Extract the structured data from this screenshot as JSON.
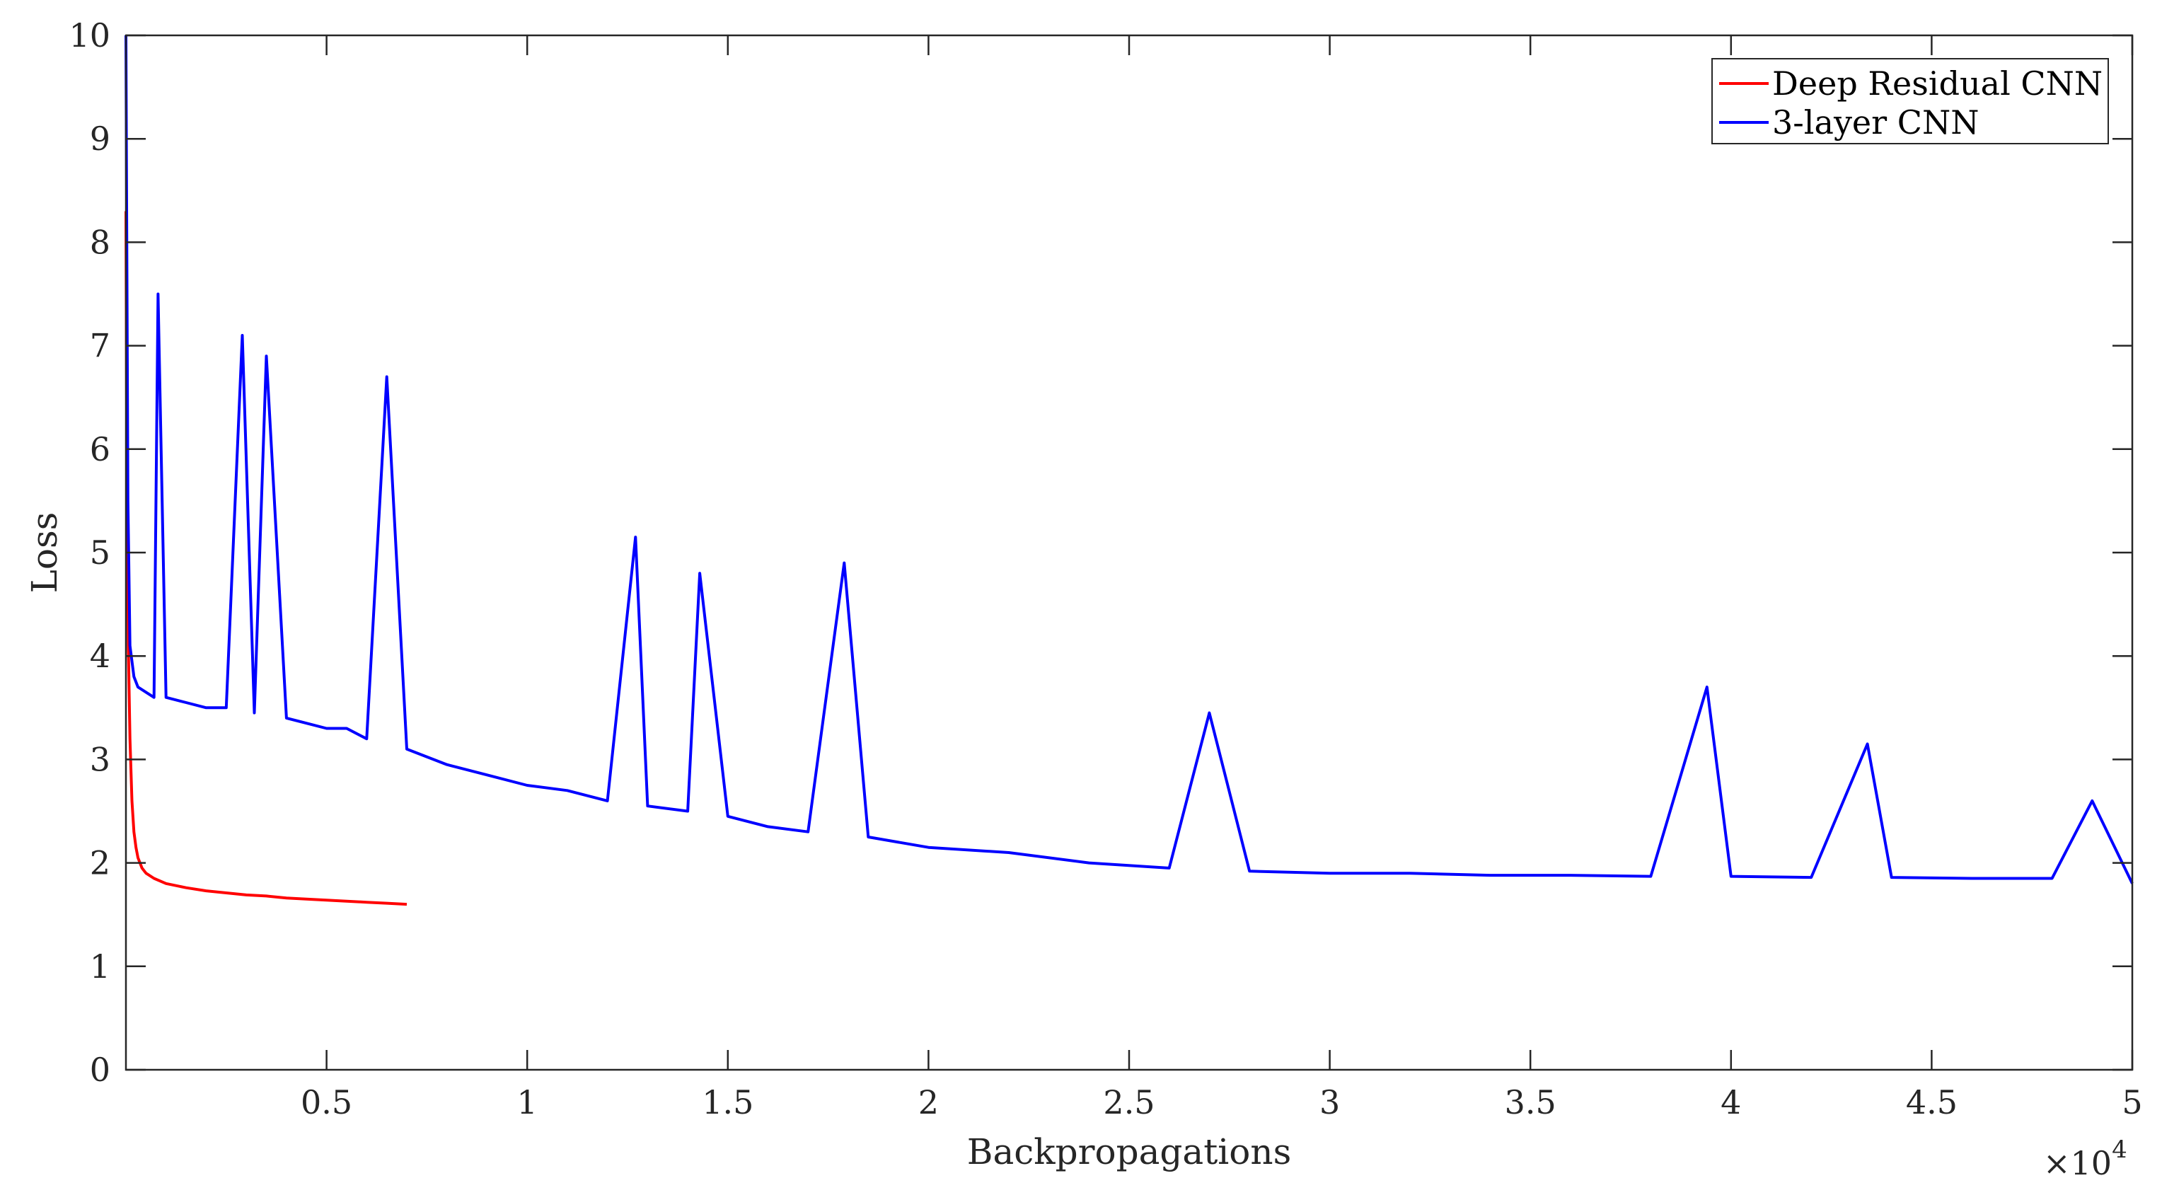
{
  "chart_data": {
    "type": "line",
    "xlabel": "Backpropagations",
    "ylabel": "Loss",
    "x_exponent_label": "×10",
    "x_exponent_power": "4",
    "xlim": [
      0,
      50000
    ],
    "ylim": [
      0,
      10
    ],
    "x_ticks": [
      5000,
      10000,
      15000,
      20000,
      25000,
      30000,
      35000,
      40000,
      45000,
      50000
    ],
    "x_tick_labels": [
      "0.5",
      "1",
      "1.5",
      "2",
      "2.5",
      "3",
      "3.5",
      "4",
      "4.5",
      "5"
    ],
    "y_ticks": [
      0,
      1,
      2,
      3,
      4,
      5,
      6,
      7,
      8,
      9,
      10
    ],
    "y_tick_labels": [
      "0",
      "1",
      "2",
      "3",
      "4",
      "5",
      "6",
      "7",
      "8",
      "9",
      "10"
    ],
    "grid": false,
    "legend_position": "top-right",
    "series": [
      {
        "name": "Deep Residual CNN",
        "color": "#ff0000",
        "x": [
          0,
          20,
          60,
          100,
          150,
          200,
          250,
          300,
          400,
          500,
          700,
          1000,
          1500,
          2000,
          2500,
          3000,
          3500,
          4000,
          4500,
          5000,
          5500,
          6000,
          6500,
          7000
        ],
        "y": [
          8.3,
          6.2,
          4.1,
          3.2,
          2.6,
          2.3,
          2.15,
          2.05,
          1.95,
          1.9,
          1.85,
          1.8,
          1.76,
          1.73,
          1.71,
          1.69,
          1.68,
          1.66,
          1.65,
          1.64,
          1.63,
          1.62,
          1.61,
          1.6
        ]
      },
      {
        "name": "3-layer CNN",
        "color": "#0000ff",
        "x": [
          0,
          20,
          50,
          100,
          200,
          300,
          500,
          700,
          800,
          1000,
          1500,
          2000,
          2500,
          2900,
          3200,
          3500,
          4000,
          4500,
          5000,
          5500,
          6000,
          6500,
          7000,
          8000,
          9000,
          10000,
          11000,
          12000,
          12700,
          13000,
          14000,
          14300,
          15000,
          16000,
          17000,
          17900,
          18500,
          20000,
          22000,
          24000,
          26000,
          27000,
          28000,
          30000,
          32000,
          34000,
          36000,
          38000,
          39400,
          40000,
          42000,
          43400,
          44000,
          46000,
          48000,
          49000,
          50000
        ],
        "y": [
          10.0,
          8.2,
          5.5,
          4.1,
          3.8,
          3.7,
          3.65,
          3.6,
          7.5,
          3.6,
          3.55,
          3.5,
          3.5,
          7.1,
          3.45,
          6.9,
          3.4,
          3.35,
          3.3,
          3.3,
          3.2,
          6.7,
          3.1,
          2.95,
          2.85,
          2.75,
          2.7,
          2.6,
          5.15,
          2.55,
          2.5,
          4.8,
          2.45,
          2.35,
          2.3,
          4.9,
          2.25,
          2.15,
          2.1,
          2.0,
          1.95,
          3.45,
          1.92,
          1.9,
          1.9,
          1.88,
          1.88,
          1.87,
          3.7,
          1.87,
          1.86,
          3.15,
          1.86,
          1.85,
          1.85,
          2.6,
          1.8
        ]
      }
    ]
  }
}
